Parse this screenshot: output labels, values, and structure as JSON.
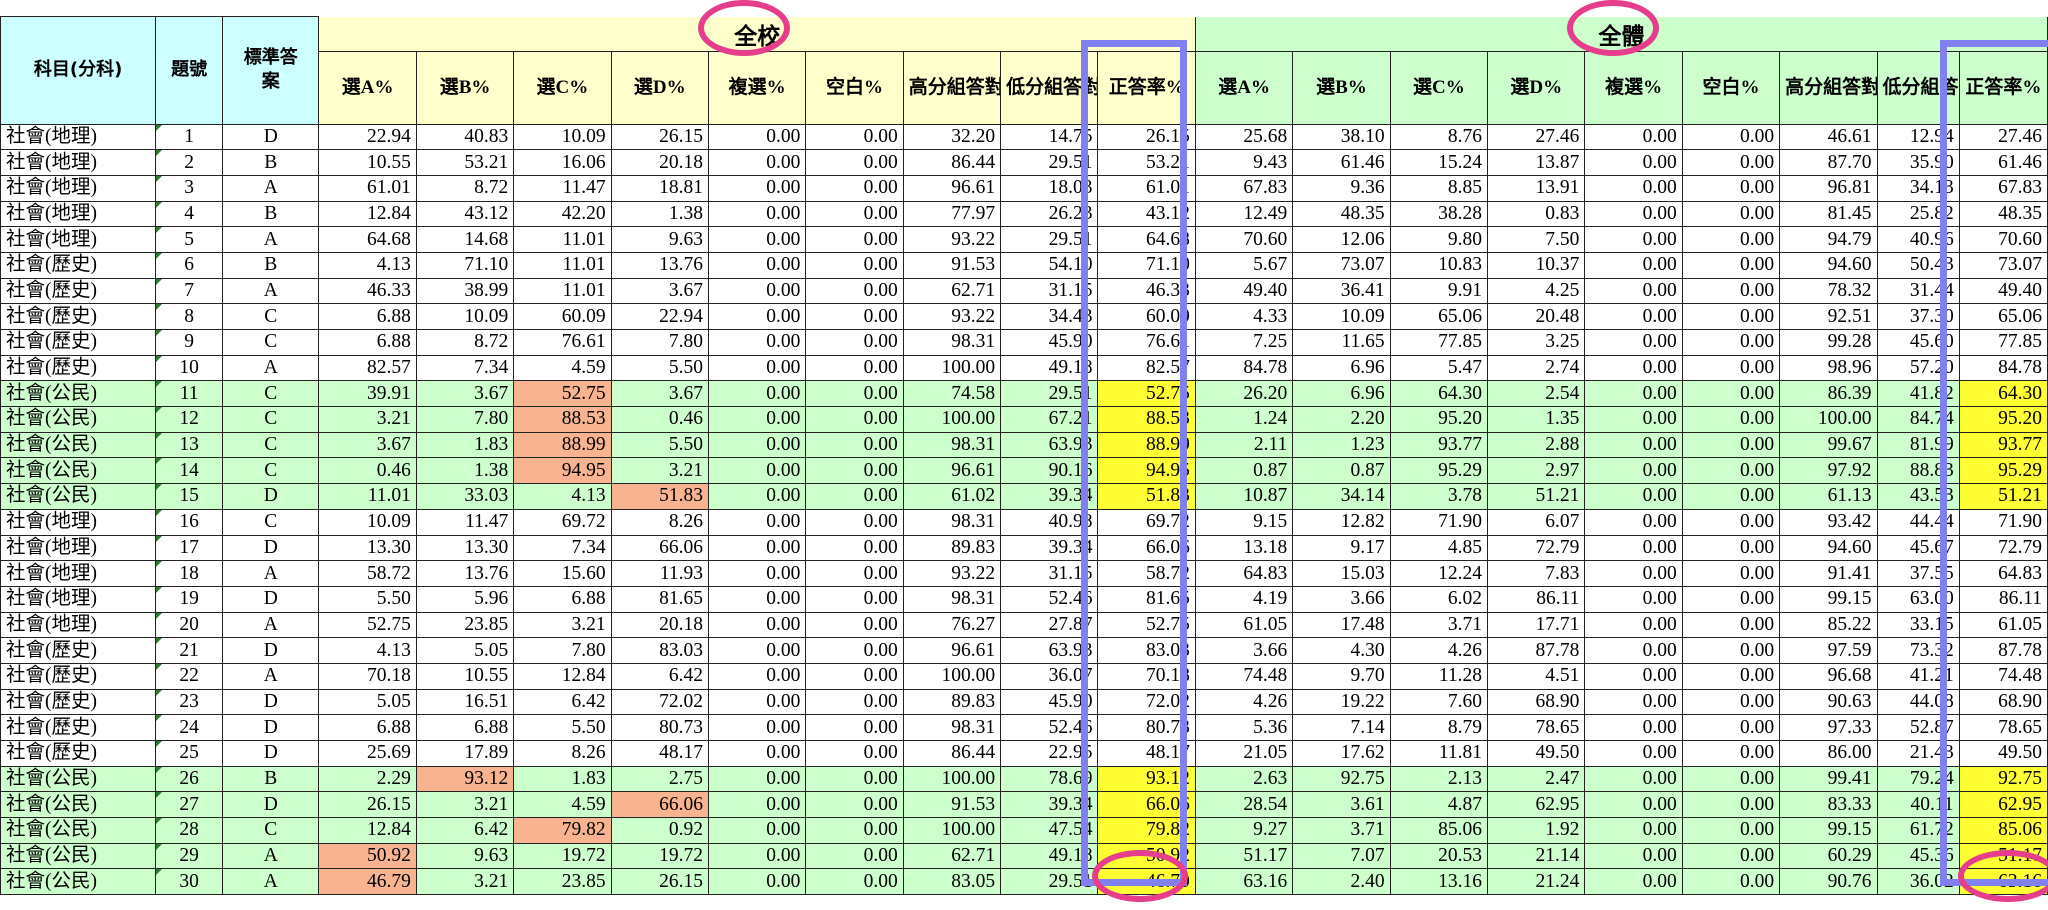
{
  "headers": {
    "subject": "科目(分科)",
    "qno": "題號",
    "answer": "標準答案",
    "school_title": "全校",
    "all_title": "全體",
    "cols": [
      "選A%",
      "選B%",
      "選C%",
      "選D%",
      "複選%",
      "空白%",
      "高分組答對%",
      "低分組答對%",
      "正答率%"
    ]
  },
  "rows": [
    {
      "subj": "社會(地理)",
      "no": "1",
      "ans": "D",
      "civic": false,
      "s": [
        "22.94",
        "40.83",
        "10.09",
        "26.15",
        "0.00",
        "0.00",
        "32.20",
        "14.75",
        "26.15"
      ],
      "a": [
        "25.68",
        "38.10",
        "8.76",
        "27.46",
        "0.00",
        "0.00",
        "46.61",
        "12.94",
        "27.46"
      ],
      "so": []
    },
    {
      "subj": "社會(地理)",
      "no": "2",
      "ans": "B",
      "civic": false,
      "s": [
        "10.55",
        "53.21",
        "16.06",
        "20.18",
        "0.00",
        "0.00",
        "86.44",
        "29.51",
        "53.21"
      ],
      "a": [
        "9.43",
        "61.46",
        "15.24",
        "13.87",
        "0.00",
        "0.00",
        "87.70",
        "35.90",
        "61.46"
      ],
      "so": []
    },
    {
      "subj": "社會(地理)",
      "no": "3",
      "ans": "A",
      "civic": false,
      "s": [
        "61.01",
        "8.72",
        "11.47",
        "18.81",
        "0.00",
        "0.00",
        "96.61",
        "18.03",
        "61.01"
      ],
      "a": [
        "67.83",
        "9.36",
        "8.85",
        "13.91",
        "0.00",
        "0.00",
        "96.81",
        "34.13",
        "67.83"
      ],
      "so": []
    },
    {
      "subj": "社會(地理)",
      "no": "4",
      "ans": "B",
      "civic": false,
      "s": [
        "12.84",
        "43.12",
        "42.20",
        "1.38",
        "0.00",
        "0.00",
        "77.97",
        "26.23",
        "43.12"
      ],
      "a": [
        "12.49",
        "48.35",
        "38.28",
        "0.83",
        "0.00",
        "0.00",
        "81.45",
        "25.82",
        "48.35"
      ],
      "so": []
    },
    {
      "subj": "社會(地理)",
      "no": "5",
      "ans": "A",
      "civic": false,
      "s": [
        "64.68",
        "14.68",
        "11.01",
        "9.63",
        "0.00",
        "0.00",
        "93.22",
        "29.51",
        "64.68"
      ],
      "a": [
        "70.60",
        "12.06",
        "9.80",
        "7.50",
        "0.00",
        "0.00",
        "94.79",
        "40.96",
        "70.60"
      ],
      "so": []
    },
    {
      "subj": "社會(歷史)",
      "no": "6",
      "ans": "B",
      "civic": false,
      "s": [
        "4.13",
        "71.10",
        "11.01",
        "13.76",
        "0.00",
        "0.00",
        "91.53",
        "54.10",
        "71.10"
      ],
      "a": [
        "5.67",
        "73.07",
        "10.83",
        "10.37",
        "0.00",
        "0.00",
        "94.60",
        "50.43",
        "73.07"
      ],
      "so": []
    },
    {
      "subj": "社會(歷史)",
      "no": "7",
      "ans": "A",
      "civic": false,
      "s": [
        "46.33",
        "38.99",
        "11.01",
        "3.67",
        "0.00",
        "0.00",
        "62.71",
        "31.15",
        "46.33"
      ],
      "a": [
        "49.40",
        "36.41",
        "9.91",
        "4.25",
        "0.00",
        "0.00",
        "78.32",
        "31.44",
        "49.40"
      ],
      "so": []
    },
    {
      "subj": "社會(歷史)",
      "no": "8",
      "ans": "C",
      "civic": false,
      "s": [
        "6.88",
        "10.09",
        "60.09",
        "22.94",
        "0.00",
        "0.00",
        "93.22",
        "34.43",
        "60.09"
      ],
      "a": [
        "4.33",
        "10.09",
        "65.06",
        "20.48",
        "0.00",
        "0.00",
        "92.51",
        "37.30",
        "65.06"
      ],
      "so": []
    },
    {
      "subj": "社會(歷史)",
      "no": "9",
      "ans": "C",
      "civic": false,
      "s": [
        "6.88",
        "8.72",
        "76.61",
        "7.80",
        "0.00",
        "0.00",
        "98.31",
        "45.90",
        "76.61"
      ],
      "a": [
        "7.25",
        "11.65",
        "77.85",
        "3.25",
        "0.00",
        "0.00",
        "99.28",
        "45.60",
        "77.85"
      ],
      "so": []
    },
    {
      "subj": "社會(歷史)",
      "no": "10",
      "ans": "A",
      "civic": false,
      "s": [
        "82.57",
        "7.34",
        "4.59",
        "5.50",
        "0.00",
        "0.00",
        "100.00",
        "49.18",
        "82.57"
      ],
      "a": [
        "84.78",
        "6.96",
        "5.47",
        "2.74",
        "0.00",
        "0.00",
        "98.96",
        "57.20",
        "84.78"
      ],
      "so": []
    },
    {
      "subj": "社會(公民)",
      "no": "11",
      "ans": "C",
      "civic": true,
      "s": [
        "39.91",
        "3.67",
        "52.75",
        "3.67",
        "0.00",
        "0.00",
        "74.58",
        "29.51",
        "52.75"
      ],
      "a": [
        "26.20",
        "6.96",
        "64.30",
        "2.54",
        "0.00",
        "0.00",
        "86.39",
        "41.82",
        "64.30"
      ],
      "so": [
        2
      ]
    },
    {
      "subj": "社會(公民)",
      "no": "12",
      "ans": "C",
      "civic": true,
      "s": [
        "3.21",
        "7.80",
        "88.53",
        "0.46",
        "0.00",
        "0.00",
        "100.00",
        "67.21",
        "88.53"
      ],
      "a": [
        "1.24",
        "2.20",
        "95.20",
        "1.35",
        "0.00",
        "0.00",
        "100.00",
        "84.74",
        "95.20"
      ],
      "so": [
        2
      ]
    },
    {
      "subj": "社會(公民)",
      "no": "13",
      "ans": "C",
      "civic": true,
      "s": [
        "3.67",
        "1.83",
        "88.99",
        "5.50",
        "0.00",
        "0.00",
        "98.31",
        "63.93",
        "88.99"
      ],
      "a": [
        "2.11",
        "1.23",
        "93.77",
        "2.88",
        "0.00",
        "0.00",
        "99.67",
        "81.99",
        "93.77"
      ],
      "so": [
        2
      ]
    },
    {
      "subj": "社會(公民)",
      "no": "14",
      "ans": "C",
      "civic": true,
      "s": [
        "0.46",
        "1.38",
        "94.95",
        "3.21",
        "0.00",
        "0.00",
        "96.61",
        "90.16",
        "94.95"
      ],
      "a": [
        "0.87",
        "0.87",
        "95.29",
        "2.97",
        "0.00",
        "0.00",
        "97.92",
        "88.83",
        "95.29"
      ],
      "so": [
        2
      ]
    },
    {
      "subj": "社會(公民)",
      "no": "15",
      "ans": "D",
      "civic": true,
      "s": [
        "11.01",
        "33.03",
        "4.13",
        "51.83",
        "0.00",
        "0.00",
        "61.02",
        "39.34",
        "51.83"
      ],
      "a": [
        "10.87",
        "34.14",
        "3.78",
        "51.21",
        "0.00",
        "0.00",
        "61.13",
        "43.53",
        "51.21"
      ],
      "so": [
        3
      ]
    },
    {
      "subj": "社會(地理)",
      "no": "16",
      "ans": "C",
      "civic": false,
      "s": [
        "10.09",
        "11.47",
        "69.72",
        "8.26",
        "0.00",
        "0.00",
        "98.31",
        "40.98",
        "69.72"
      ],
      "a": [
        "9.15",
        "12.82",
        "71.90",
        "6.07",
        "0.00",
        "0.00",
        "93.42",
        "44.44",
        "71.90"
      ],
      "so": []
    },
    {
      "subj": "社會(地理)",
      "no": "17",
      "ans": "D",
      "civic": false,
      "s": [
        "13.30",
        "13.30",
        "7.34",
        "66.06",
        "0.00",
        "0.00",
        "89.83",
        "39.34",
        "66.06"
      ],
      "a": [
        "13.18",
        "9.17",
        "4.85",
        "72.79",
        "0.00",
        "0.00",
        "94.60",
        "45.67",
        "72.79"
      ],
      "so": []
    },
    {
      "subj": "社會(地理)",
      "no": "18",
      "ans": "A",
      "civic": false,
      "s": [
        "58.72",
        "13.76",
        "15.60",
        "11.93",
        "0.00",
        "0.00",
        "93.22",
        "31.15",
        "58.72"
      ],
      "a": [
        "64.83",
        "15.03",
        "12.24",
        "7.83",
        "0.00",
        "0.00",
        "91.41",
        "37.55",
        "64.83"
      ],
      "so": []
    },
    {
      "subj": "社會(地理)",
      "no": "19",
      "ans": "D",
      "civic": false,
      "s": [
        "5.50",
        "5.96",
        "6.88",
        "81.65",
        "0.00",
        "0.00",
        "98.31",
        "52.46",
        "81.65"
      ],
      "a": [
        "4.19",
        "3.66",
        "6.02",
        "86.11",
        "0.00",
        "0.00",
        "99.15",
        "63.00",
        "86.11"
      ],
      "so": []
    },
    {
      "subj": "社會(地理)",
      "no": "20",
      "ans": "A",
      "civic": false,
      "s": [
        "52.75",
        "23.85",
        "3.21",
        "20.18",
        "0.00",
        "0.00",
        "76.27",
        "27.87",
        "52.75"
      ],
      "a": [
        "61.05",
        "17.48",
        "3.71",
        "17.71",
        "0.00",
        "0.00",
        "85.22",
        "33.15",
        "61.05"
      ],
      "so": []
    },
    {
      "subj": "社會(歷史)",
      "no": "21",
      "ans": "D",
      "civic": false,
      "s": [
        "4.13",
        "5.05",
        "7.80",
        "83.03",
        "0.00",
        "0.00",
        "96.61",
        "63.93",
        "83.03"
      ],
      "a": [
        "3.66",
        "4.30",
        "4.26",
        "87.78",
        "0.00",
        "0.00",
        "97.59",
        "73.32",
        "87.78"
      ],
      "so": []
    },
    {
      "subj": "社會(歷史)",
      "no": "22",
      "ans": "A",
      "civic": false,
      "s": [
        "70.18",
        "10.55",
        "12.84",
        "6.42",
        "0.00",
        "0.00",
        "100.00",
        "36.07",
        "70.18"
      ],
      "a": [
        "74.48",
        "9.70",
        "11.28",
        "4.51",
        "0.00",
        "0.00",
        "96.68",
        "41.21",
        "74.48"
      ],
      "so": []
    },
    {
      "subj": "社會(歷史)",
      "no": "23",
      "ans": "D",
      "civic": false,
      "s": [
        "5.05",
        "16.51",
        "6.42",
        "72.02",
        "0.00",
        "0.00",
        "89.83",
        "45.90",
        "72.02"
      ],
      "a": [
        "4.26",
        "19.22",
        "7.60",
        "68.90",
        "0.00",
        "0.00",
        "90.63",
        "44.08",
        "68.90"
      ],
      "so": []
    },
    {
      "subj": "社會(歷史)",
      "no": "24",
      "ans": "D",
      "civic": false,
      "s": [
        "6.88",
        "6.88",
        "5.50",
        "80.73",
        "0.00",
        "0.00",
        "98.31",
        "52.46",
        "80.73"
      ],
      "a": [
        "5.36",
        "7.14",
        "8.79",
        "78.65",
        "0.00",
        "0.00",
        "97.33",
        "52.87",
        "78.65"
      ],
      "so": []
    },
    {
      "subj": "社會(歷史)",
      "no": "25",
      "ans": "D",
      "civic": false,
      "s": [
        "25.69",
        "17.89",
        "8.26",
        "48.17",
        "0.00",
        "0.00",
        "86.44",
        "22.95",
        "48.17"
      ],
      "a": [
        "21.05",
        "17.62",
        "11.81",
        "49.50",
        "0.00",
        "0.00",
        "86.00",
        "21.43",
        "49.50"
      ],
      "so": []
    },
    {
      "subj": "社會(公民)",
      "no": "26",
      "ans": "B",
      "civic": true,
      "s": [
        "2.29",
        "93.12",
        "1.83",
        "2.75",
        "0.00",
        "0.00",
        "100.00",
        "78.69",
        "93.12"
      ],
      "a": [
        "2.63",
        "92.75",
        "2.13",
        "2.47",
        "0.00",
        "0.00",
        "99.41",
        "79.24",
        "92.75"
      ],
      "so": [
        1
      ]
    },
    {
      "subj": "社會(公民)",
      "no": "27",
      "ans": "D",
      "civic": true,
      "s": [
        "26.15",
        "3.21",
        "4.59",
        "66.06",
        "0.00",
        "0.00",
        "91.53",
        "39.34",
        "66.06"
      ],
      "a": [
        "28.54",
        "3.61",
        "4.87",
        "62.95",
        "0.00",
        "0.00",
        "83.33",
        "40.11",
        "62.95"
      ],
      "so": [
        3
      ]
    },
    {
      "subj": "社會(公民)",
      "no": "28",
      "ans": "C",
      "civic": true,
      "s": [
        "12.84",
        "6.42",
        "79.82",
        "0.92",
        "0.00",
        "0.00",
        "100.00",
        "47.54",
        "79.82"
      ],
      "a": [
        "9.27",
        "3.71",
        "85.06",
        "1.92",
        "0.00",
        "0.00",
        "99.15",
        "61.72",
        "85.06"
      ],
      "so": [
        2
      ]
    },
    {
      "subj": "社會(公民)",
      "no": "29",
      "ans": "A",
      "civic": true,
      "s": [
        "50.92",
        "9.63",
        "19.72",
        "19.72",
        "0.00",
        "0.00",
        "62.71",
        "49.18",
        "50.92"
      ],
      "a": [
        "51.17",
        "7.07",
        "20.53",
        "21.14",
        "0.00",
        "0.00",
        "60.29",
        "45.36",
        "51.17"
      ],
      "so": [
        0
      ]
    },
    {
      "subj": "社會(公民)",
      "no": "30",
      "ans": "A",
      "civic": true,
      "s": [
        "46.79",
        "3.21",
        "23.85",
        "26.15",
        "0.00",
        "0.00",
        "83.05",
        "29.51",
        "46.79"
      ],
      "a": [
        "63.16",
        "2.40",
        "13.16",
        "21.24",
        "0.00",
        "0.00",
        "90.76",
        "36.02",
        "63.16"
      ],
      "so": [
        0
      ]
    }
  ],
  "colors": {
    "label_header": "#ccffff",
    "school_header": "#ffffcc",
    "all_header": "#ccffcc",
    "civic_row": "#ccffcc",
    "highlight_orange": "#f8b490",
    "highlight_yellow": "#ffff33",
    "box_border": "#8080f0",
    "circle": "#e63d8c"
  }
}
